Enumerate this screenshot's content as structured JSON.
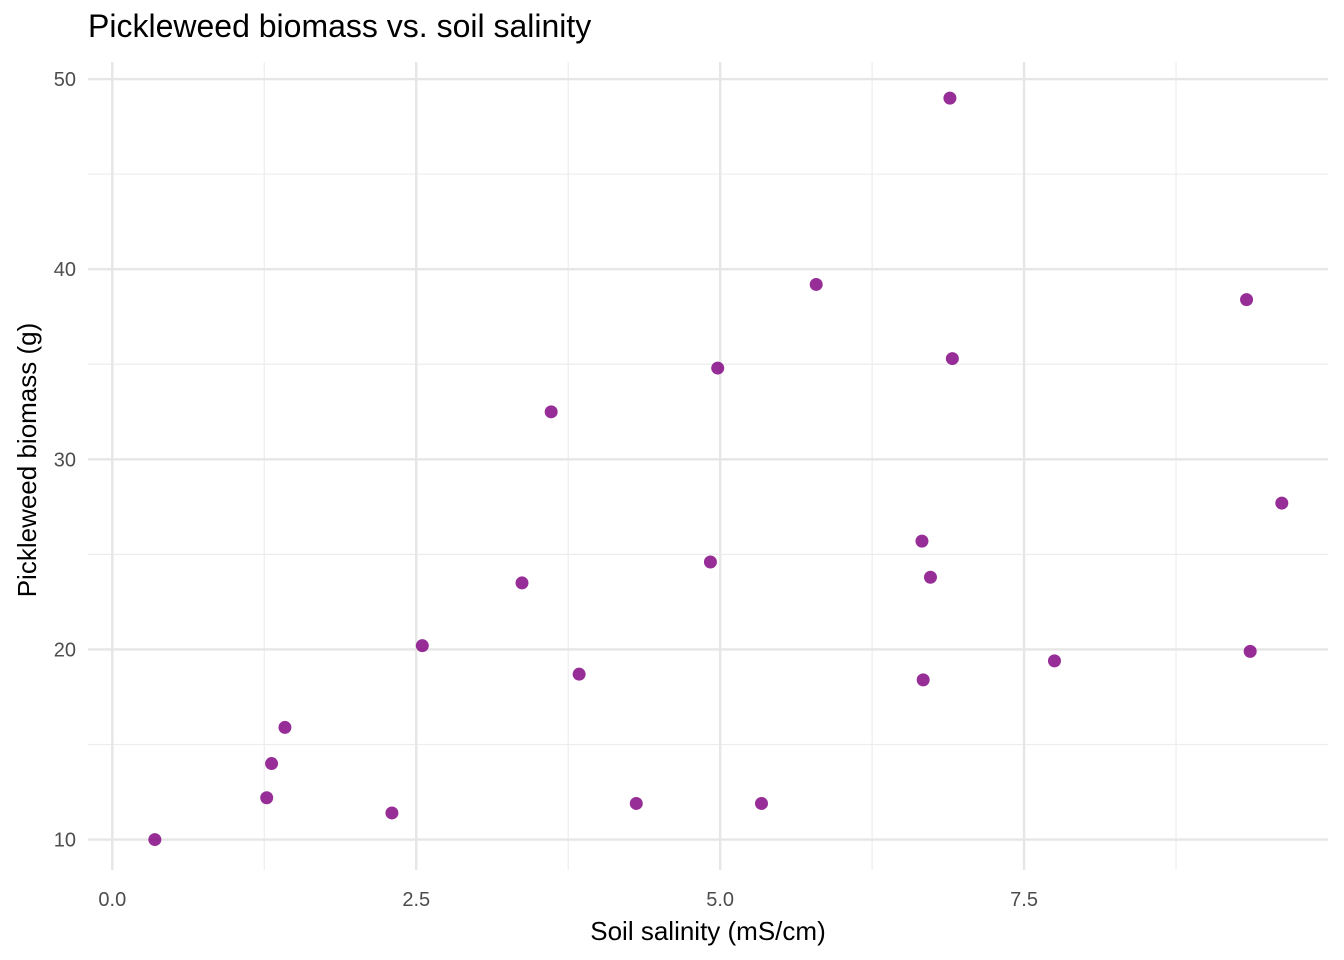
{
  "chart_data": {
    "type": "scatter",
    "title": "Pickleweed biomass vs. soil salinity",
    "xlabel": "Soil salinity (mS/cm)",
    "ylabel": "Pickleweed biomass (g)",
    "xlim": [
      -0.2,
      10.0
    ],
    "ylim": [
      8.4,
      50.9
    ],
    "x_major_ticks": [
      0,
      2.5,
      5,
      7.5
    ],
    "x_tick_labels": [
      "0.0",
      "2.5",
      "5.0",
      "7.5"
    ],
    "x_minor_ticks": [
      1.25,
      3.75,
      6.25,
      8.75
    ],
    "y_major_ticks": [
      10,
      20,
      30,
      40,
      50
    ],
    "y_tick_labels": [
      "10",
      "20",
      "30",
      "40",
      "50"
    ],
    "y_minor_ticks": [
      15,
      25,
      35,
      45
    ],
    "grid": true,
    "point_color": "#800080",
    "points": [
      {
        "x": 0.35,
        "y": 10.0
      },
      {
        "x": 1.27,
        "y": 12.2
      },
      {
        "x": 1.31,
        "y": 14.0
      },
      {
        "x": 1.42,
        "y": 15.9
      },
      {
        "x": 2.3,
        "y": 11.4
      },
      {
        "x": 2.55,
        "y": 20.2
      },
      {
        "x": 3.37,
        "y": 23.5
      },
      {
        "x": 3.61,
        "y": 32.5
      },
      {
        "x": 3.84,
        "y": 18.7
      },
      {
        "x": 4.31,
        "y": 11.9
      },
      {
        "x": 4.92,
        "y": 24.6
      },
      {
        "x": 4.98,
        "y": 34.8
      },
      {
        "x": 5.34,
        "y": 11.9
      },
      {
        "x": 5.79,
        "y": 39.2
      },
      {
        "x": 6.66,
        "y": 25.7
      },
      {
        "x": 6.67,
        "y": 18.4
      },
      {
        "x": 6.73,
        "y": 23.8
      },
      {
        "x": 6.89,
        "y": 49.0
      },
      {
        "x": 6.91,
        "y": 35.3
      },
      {
        "x": 7.75,
        "y": 19.4
      },
      {
        "x": 9.33,
        "y": 38.4
      },
      {
        "x": 9.36,
        "y": 19.9
      },
      {
        "x": 9.62,
        "y": 27.7
      }
    ]
  }
}
